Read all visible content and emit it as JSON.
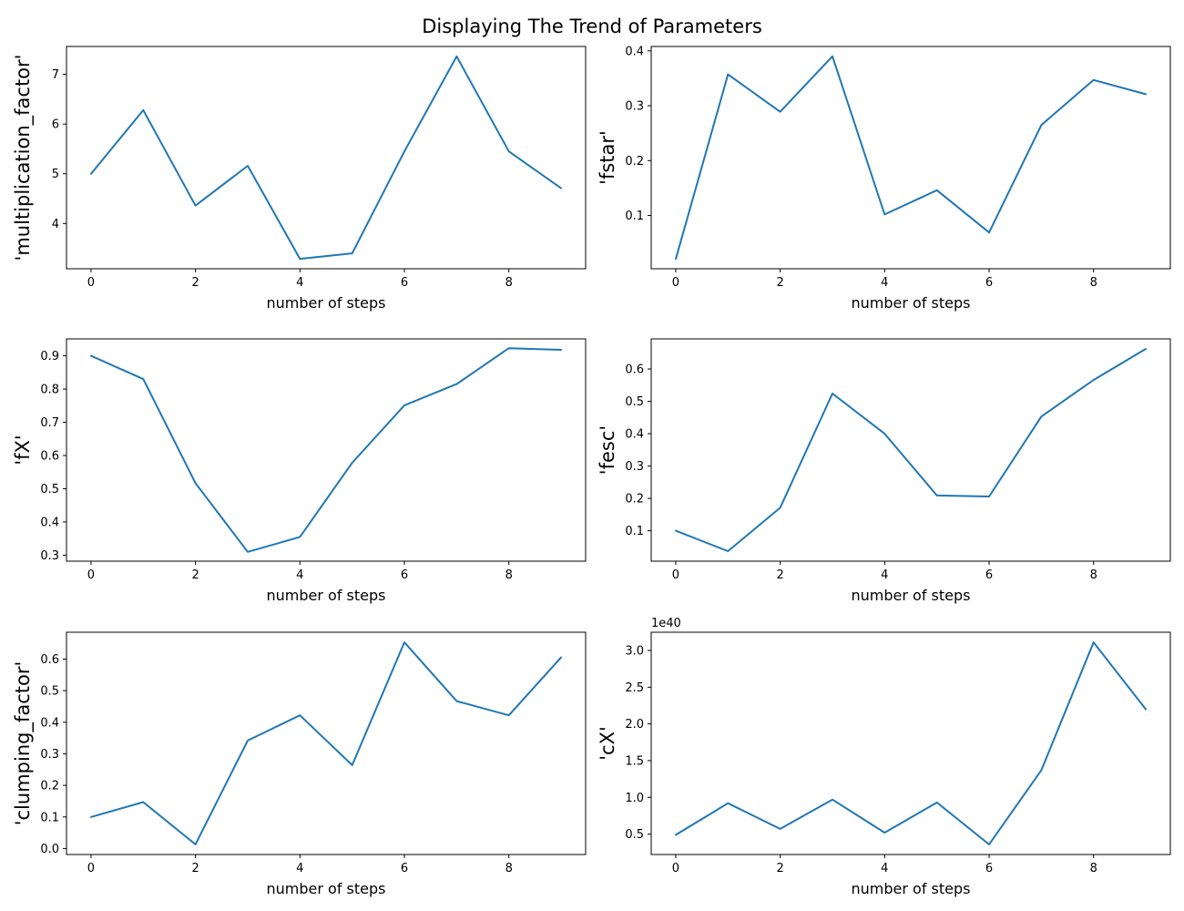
{
  "figure_title": "Displaying The Trend of Parameters",
  "colors": {
    "line": "#1f77b4",
    "axis": "#000000"
  },
  "chart_data": [
    {
      "type": "line",
      "xlabel": "number of steps",
      "ylabel": "'multiplication_factor'",
      "x": [
        0,
        1,
        2,
        3,
        4,
        5,
        6,
        7,
        8,
        9
      ],
      "values": [
        5.0,
        6.28,
        4.36,
        5.16,
        3.29,
        3.4,
        5.45,
        7.36,
        5.45,
        4.71
      ],
      "xlim": [
        -0.47,
        9.47
      ],
      "ylim": [
        3.09,
        7.56
      ],
      "xticks": [
        0,
        2,
        4,
        6,
        8
      ],
      "yticks": [
        4,
        5,
        6,
        7
      ],
      "ytick_labels": [
        "4",
        "5",
        "6",
        "7"
      ],
      "offset_text": ""
    },
    {
      "type": "line",
      "xlabel": "number of steps",
      "ylabel": "'fstar'",
      "x": [
        0,
        1,
        2,
        3,
        4,
        5,
        6,
        7,
        8,
        9
      ],
      "values": [
        0.021,
        0.357,
        0.289,
        0.39,
        0.102,
        0.146,
        0.069,
        0.265,
        0.347,
        0.321
      ],
      "xlim": [
        -0.47,
        9.47
      ],
      "ylim": [
        0.003,
        0.408
      ],
      "xticks": [
        0,
        2,
        4,
        6,
        8
      ],
      "yticks": [
        0.1,
        0.2,
        0.3,
        0.4
      ],
      "ytick_labels": [
        "0.1",
        "0.2",
        "0.3",
        "0.4"
      ],
      "offset_text": ""
    },
    {
      "type": "line",
      "xlabel": "number of steps",
      "ylabel": "'fX'",
      "x": [
        0,
        1,
        2,
        3,
        4,
        5,
        6,
        7,
        8,
        9
      ],
      "values": [
        0.9,
        0.83,
        0.517,
        0.31,
        0.355,
        0.578,
        0.751,
        0.815,
        0.923,
        0.918
      ],
      "xlim": [
        -0.47,
        9.47
      ],
      "ylim": [
        0.282,
        0.951
      ],
      "xticks": [
        0,
        2,
        4,
        6,
        8
      ],
      "yticks": [
        0.3,
        0.4,
        0.5,
        0.6,
        0.7,
        0.8,
        0.9
      ],
      "ytick_labels": [
        "0.3",
        "0.4",
        "0.5",
        "0.6",
        "0.7",
        "0.8",
        "0.9"
      ],
      "offset_text": ""
    },
    {
      "type": "line",
      "xlabel": "number of steps",
      "ylabel": "'fesc'",
      "x": [
        0,
        1,
        2,
        3,
        4,
        5,
        6,
        7,
        8,
        9
      ],
      "values": [
        0.1,
        0.037,
        0.171,
        0.524,
        0.4,
        0.209,
        0.206,
        0.453,
        0.566,
        0.662
      ],
      "xlim": [
        -0.47,
        9.47
      ],
      "ylim": [
        0.006,
        0.693
      ],
      "xticks": [
        0,
        2,
        4,
        6,
        8
      ],
      "yticks": [
        0.1,
        0.2,
        0.3,
        0.4,
        0.5,
        0.6
      ],
      "ytick_labels": [
        "0.1",
        "0.2",
        "0.3",
        "0.4",
        "0.5",
        "0.6"
      ],
      "offset_text": ""
    },
    {
      "type": "line",
      "xlabel": "number of steps",
      "ylabel": "'clumping_factor'",
      "x": [
        0,
        1,
        2,
        3,
        4,
        5,
        6,
        7,
        8,
        9
      ],
      "values": [
        0.1,
        0.147,
        0.013,
        0.342,
        0.422,
        0.264,
        0.653,
        0.467,
        0.422,
        0.605
      ],
      "xlim": [
        -0.47,
        9.47
      ],
      "ylim": [
        -0.019,
        0.685
      ],
      "xticks": [
        0,
        2,
        4,
        6,
        8
      ],
      "yticks": [
        0.0,
        0.1,
        0.2,
        0.3,
        0.4,
        0.5,
        0.6
      ],
      "ytick_labels": [
        "0.0",
        "0.1",
        "0.2",
        "0.3",
        "0.4",
        "0.5",
        "0.6"
      ],
      "offset_text": ""
    },
    {
      "type": "line",
      "xlabel": "number of steps",
      "ylabel": "'cX'",
      "x": [
        0,
        1,
        2,
        3,
        4,
        5,
        6,
        7,
        8,
        9
      ],
      "values": [
        0.49,
        0.92,
        0.57,
        0.97,
        0.52,
        0.93,
        0.36,
        1.37,
        3.11,
        2.2
      ],
      "xlim": [
        -0.47,
        9.47
      ],
      "ylim": [
        0.222,
        3.248
      ],
      "xticks": [
        0,
        2,
        4,
        6,
        8
      ],
      "yticks": [
        0.5,
        1.0,
        1.5,
        2.0,
        2.5,
        3.0
      ],
      "ytick_labels": [
        "0.5",
        "1.0",
        "1.5",
        "2.0",
        "2.5",
        "3.0"
      ],
      "offset_text": "1e40"
    }
  ]
}
